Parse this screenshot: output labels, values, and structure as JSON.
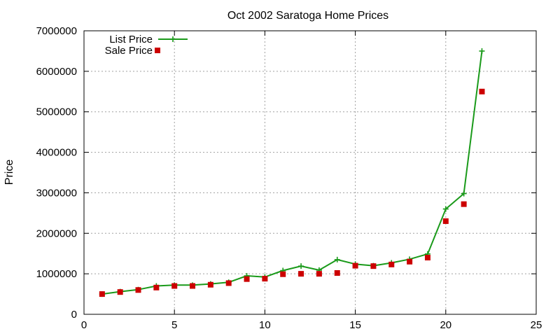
{
  "chart_data": {
    "type": "line",
    "title": "Oct 2002 Saratoga Home Prices",
    "xlabel": "",
    "ylabel": "Price",
    "xlim": [
      0,
      25
    ],
    "ylim": [
      0,
      7000000
    ],
    "x_ticks": [
      0,
      5,
      10,
      15,
      20,
      25
    ],
    "y_ticks": [
      0,
      1000000,
      2000000,
      3000000,
      4000000,
      5000000,
      6000000,
      7000000
    ],
    "grid": true,
    "legend_position": "top-left",
    "series": [
      {
        "name": "List Price",
        "style": "lines-points",
        "marker": "plus",
        "color": "#1a9a1a",
        "x": [
          1,
          2,
          3,
          4,
          5,
          6,
          7,
          8,
          9,
          10,
          11,
          12,
          13,
          14,
          15,
          16,
          17,
          18,
          19,
          20,
          21,
          22
        ],
        "values": [
          500000,
          560000,
          610000,
          700000,
          720000,
          720000,
          750000,
          790000,
          950000,
          920000,
          1080000,
          1190000,
          1090000,
          1350000,
          1240000,
          1200000,
          1270000,
          1360000,
          1490000,
          2600000,
          2980000,
          6500000
        ]
      },
      {
        "name": "Sale Price",
        "style": "points",
        "marker": "square",
        "color": "#cc0000",
        "x": [
          1,
          2,
          3,
          4,
          5,
          6,
          7,
          8,
          9,
          10,
          11,
          12,
          13,
          14,
          15,
          16,
          17,
          18,
          19,
          20,
          21,
          22
        ],
        "values": [
          500000,
          550000,
          600000,
          660000,
          700000,
          700000,
          730000,
          770000,
          870000,
          880000,
          990000,
          1000000,
          1000000,
          1020000,
          1200000,
          1190000,
          1230000,
          1300000,
          1400000,
          2300000,
          2720000,
          5500000
        ]
      }
    ]
  }
}
